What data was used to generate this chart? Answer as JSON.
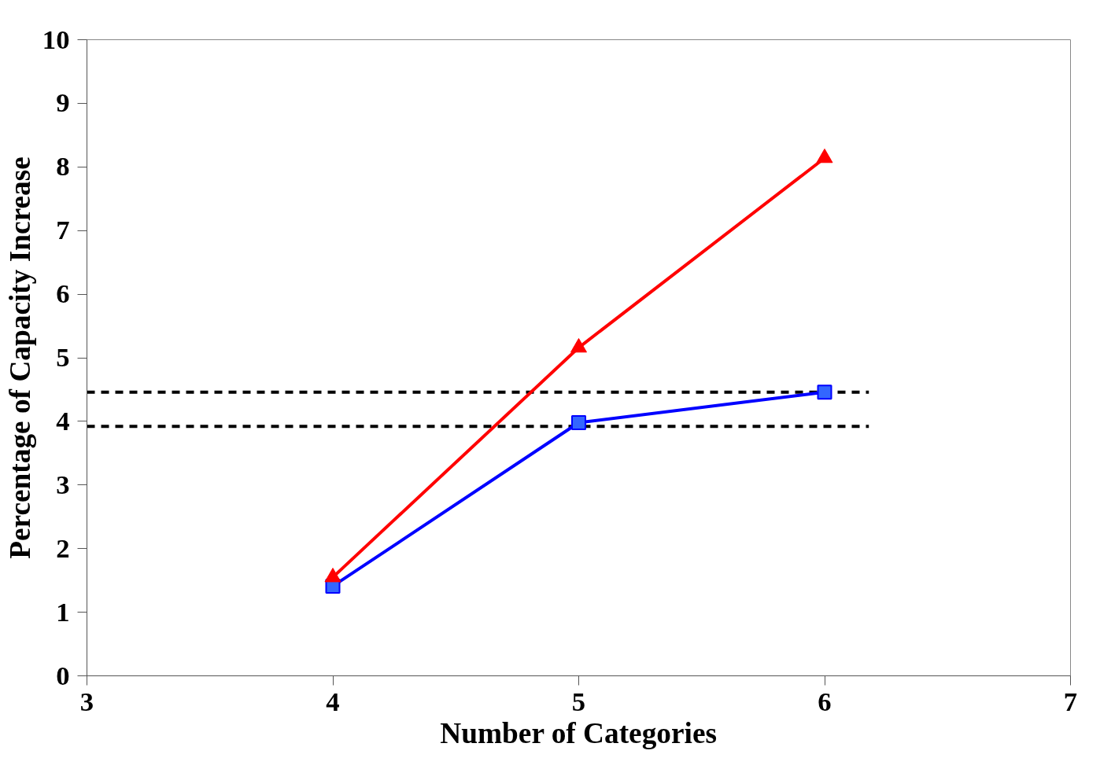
{
  "chart_data": {
    "type": "line",
    "xlabel": "Number of Categories",
    "ylabel": "Percentage of Capacity Increase",
    "xlim": [
      3,
      7
    ],
    "xticks": [
      3,
      4,
      5,
      6,
      7
    ],
    "ylim": [
      0,
      10
    ],
    "yticks": [
      0,
      1,
      2,
      3,
      4,
      5,
      6,
      7,
      8,
      9,
      10
    ],
    "grid": false,
    "series": [
      {
        "x": [
          3,
          6.18
        ],
        "values": [
          4.46,
          4.46
        ],
        "color": "#000000",
        "line_style": "dashed",
        "marker": "none"
      },
      {
        "x": [
          3,
          6.18
        ],
        "values": [
          3.92,
          3.92
        ],
        "color": "#000000",
        "line_style": "dashed",
        "marker": "none"
      },
      {
        "x": [
          4,
          5,
          6
        ],
        "values": [
          1.41,
          3.98,
          4.46
        ],
        "color": "#0000ff",
        "line_style": "solid",
        "marker": "square"
      },
      {
        "x": [
          4,
          5,
          6
        ],
        "values": [
          1.55,
          5.16,
          8.14
        ],
        "color": "#ff0000",
        "line_style": "solid",
        "marker": "triangle"
      }
    ]
  }
}
